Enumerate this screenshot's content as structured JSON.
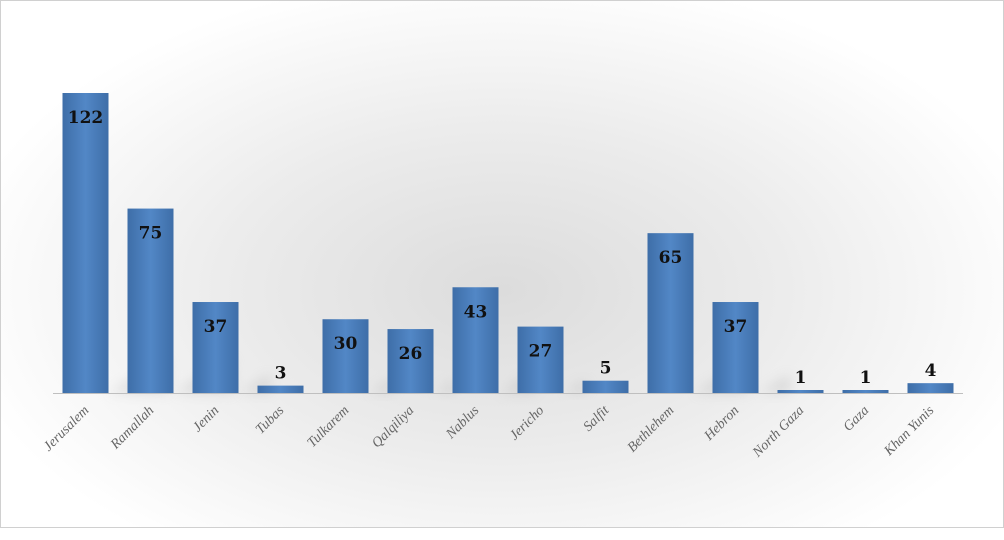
{
  "chart_data": {
    "type": "bar",
    "categories": [
      "Jerusalem",
      "Ramallah",
      "Jenin",
      "Tubas",
      "Tulkarem",
      "Qalqiliya",
      "Nablus",
      "Jericho",
      "Salfit",
      "Bethlehem",
      "Hebron",
      "North Gaza",
      "Gaza",
      "Khan Yunis"
    ],
    "values": [
      122,
      75,
      37,
      3,
      30,
      26,
      43,
      27,
      5,
      65,
      37,
      1,
      1,
      4
    ],
    "title": "",
    "xlabel": "",
    "ylabel": "",
    "ylim": [
      0,
      122
    ],
    "grid": false,
    "legend": "none",
    "data_labels": true,
    "bar_color": "#4f81bd"
  }
}
